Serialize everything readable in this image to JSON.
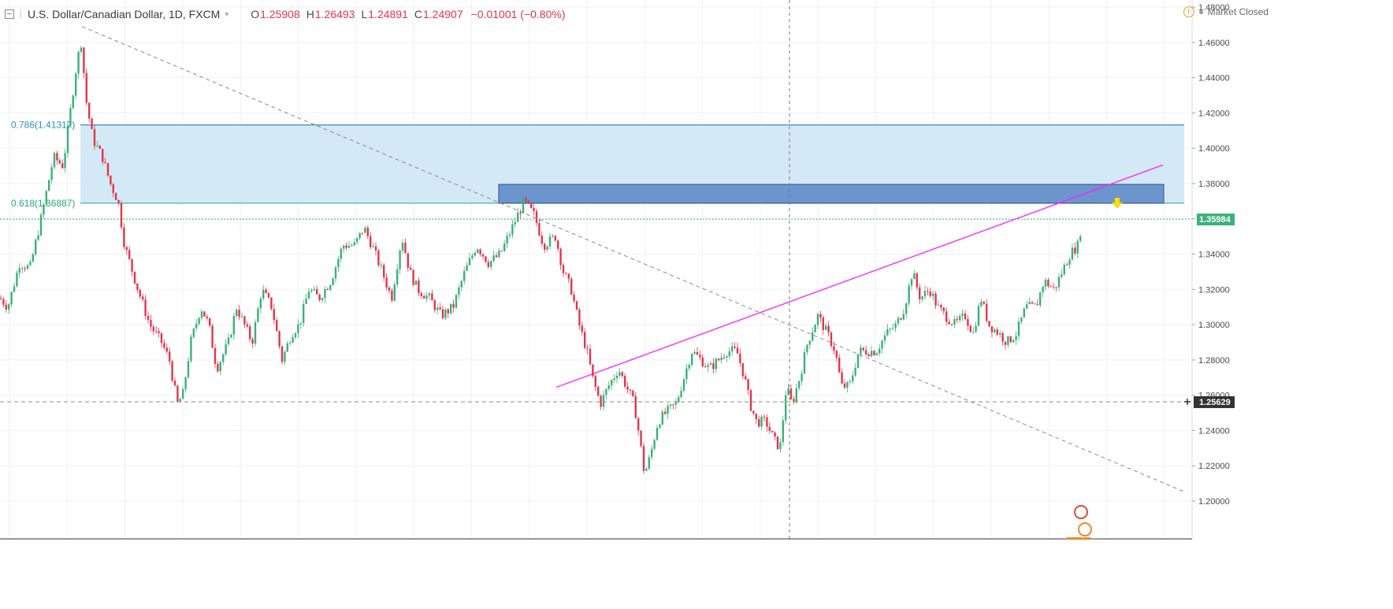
{
  "header": {
    "title": "U.S. Dollar/Canadian Dollar, 1D, FXCM",
    "o_label": "O",
    "o_value": "1.25908",
    "h_label": "H",
    "h_value": "1.26493",
    "l_label": "L",
    "l_value": "1.24891",
    "c_label": "C",
    "c_value": "1.24907",
    "change": "−0.01001 (−0.80%)"
  },
  "status": {
    "text": "Market Closed",
    "icon": "warning-icon"
  },
  "chart_data": {
    "type": "candlestick",
    "symbol": "USDCAD",
    "timeframe": "1D",
    "ylim": [
      1.192,
      1.482
    ],
    "y_ticks": [
      "1.48000",
      "1.46000",
      "1.44000",
      "1.42000",
      "1.40000",
      "1.38000",
      "1.36000",
      "1.34000",
      "1.32000",
      "1.30000",
      "1.28000",
      "1.26000",
      "1.24000",
      "1.22000",
      "1.20000"
    ],
    "grid": true,
    "colors": {
      "up": "#3bb07a",
      "down": "#e0364c",
      "fib_zone": "#d2e8f5",
      "fib_line": "#1e6fa8",
      "resistance_box": "#5b86c6",
      "trendline": "#ff1bff",
      "crosshair": "#7a7a7a"
    },
    "fib_levels": [
      {
        "label": "0.786(1.41317)",
        "price": 1.41317
      },
      {
        "label": "0.618(1.36887)",
        "price": 1.36887
      }
    ],
    "resistance_zone": {
      "top": 1.3795,
      "bottom": 1.3688
    },
    "price_lines": [
      {
        "label": "1.35984",
        "price": 1.35984,
        "style": "dotted",
        "color": "#3bb07a"
      },
      {
        "label": "1.25629",
        "price": 1.25629,
        "style": "dashed",
        "color": "#333333"
      }
    ],
    "diagonal_trendline_start_price": 1.469,
    "diagonal_trendline_end_price": 1.2055,
    "rising_trendline_start_price": 1.2645,
    "rising_trendline_end_price": 1.3905,
    "keypoints": [
      [
        0,
        1.315
      ],
      [
        10,
        1.31
      ],
      [
        25,
        1.335
      ],
      [
        38,
        1.332
      ],
      [
        52,
        1.36
      ],
      [
        68,
        1.395
      ],
      [
        80,
        1.39
      ],
      [
        98,
        1.45
      ],
      [
        103,
        1.46
      ],
      [
        110,
        1.425
      ],
      [
        118,
        1.405
      ],
      [
        130,
        1.395
      ],
      [
        140,
        1.38
      ],
      [
        150,
        1.37
      ],
      [
        158,
        1.345
      ],
      [
        175,
        1.32
      ],
      [
        190,
        1.3
      ],
      [
        205,
        1.29
      ],
      [
        215,
        1.28
      ],
      [
        225,
        1.255
      ],
      [
        232,
        1.26
      ],
      [
        242,
        1.29
      ],
      [
        255,
        1.31
      ],
      [
        265,
        1.3
      ],
      [
        275,
        1.275
      ],
      [
        290,
        1.29
      ],
      [
        300,
        1.31
      ],
      [
        310,
        1.3
      ],
      [
        320,
        1.29
      ],
      [
        332,
        1.32
      ],
      [
        345,
        1.31
      ],
      [
        358,
        1.28
      ],
      [
        370,
        1.295
      ],
      [
        380,
        1.3
      ],
      [
        392,
        1.32
      ],
      [
        405,
        1.315
      ],
      [
        420,
        1.325
      ],
      [
        435,
        1.345
      ],
      [
        450,
        1.345
      ],
      [
        462,
        1.355
      ],
      [
        472,
        1.345
      ],
      [
        485,
        1.33
      ],
      [
        497,
        1.315
      ],
      [
        510,
        1.35
      ],
      [
        520,
        1.33
      ],
      [
        530,
        1.32
      ],
      [
        545,
        1.315
      ],
      [
        560,
        1.305
      ],
      [
        575,
        1.31
      ],
      [
        590,
        1.33
      ],
      [
        605,
        1.345
      ],
      [
        620,
        1.335
      ],
      [
        635,
        1.34
      ],
      [
        650,
        1.355
      ],
      [
        665,
        1.37
      ],
      [
        678,
        1.362
      ],
      [
        690,
        1.345
      ],
      [
        705,
        1.35
      ],
      [
        715,
        1.33
      ],
      [
        725,
        1.32
      ],
      [
        735,
        1.3
      ],
      [
        745,
        1.285
      ],
      [
        752,
        1.27
      ],
      [
        762,
        1.255
      ],
      [
        772,
        1.265
      ],
      [
        785,
        1.275
      ],
      [
        795,
        1.265
      ],
      [
        805,
        1.255
      ],
      [
        812,
        1.235
      ],
      [
        818,
        1.215
      ],
      [
        825,
        1.225
      ],
      [
        835,
        1.245
      ],
      [
        845,
        1.25
      ],
      [
        858,
        1.255
      ],
      [
        868,
        1.27
      ],
      [
        878,
        1.285
      ],
      [
        890,
        1.28
      ],
      [
        900,
        1.275
      ],
      [
        912,
        1.28
      ],
      [
        922,
        1.285
      ],
      [
        935,
        1.285
      ],
      [
        945,
        1.27
      ],
      [
        952,
        1.255
      ],
      [
        960,
        1.245
      ],
      [
        972,
        1.245
      ],
      [
        982,
        1.235
      ],
      [
        990,
        1.23
      ],
      [
        998,
        1.265
      ],
      [
        1005,
        1.255
      ],
      [
        1015,
        1.27
      ],
      [
        1025,
        1.29
      ],
      [
        1038,
        1.305
      ],
      [
        1050,
        1.295
      ],
      [
        1060,
        1.285
      ],
      [
        1068,
        1.265
      ],
      [
        1078,
        1.265
      ],
      [
        1090,
        1.285
      ],
      [
        1100,
        1.285
      ],
      [
        1112,
        1.285
      ],
      [
        1125,
        1.295
      ],
      [
        1138,
        1.3
      ],
      [
        1148,
        1.31
      ],
      [
        1158,
        1.33
      ],
      [
        1168,
        1.315
      ],
      [
        1180,
        1.32
      ],
      [
        1190,
        1.31
      ],
      [
        1200,
        1.305
      ],
      [
        1212,
        1.3
      ],
      [
        1225,
        1.305
      ],
      [
        1235,
        1.295
      ],
      [
        1245,
        1.315
      ],
      [
        1255,
        1.3
      ],
      [
        1268,
        1.295
      ],
      [
        1278,
        1.29
      ],
      [
        1290,
        1.295
      ],
      [
        1302,
        1.31
      ],
      [
        1315,
        1.31
      ],
      [
        1325,
        1.325
      ],
      [
        1338,
        1.32
      ],
      [
        1348,
        1.33
      ],
      [
        1358,
        1.34
      ],
      [
        1368,
        1.345
      ],
      [
        1374,
        1.36
      ]
    ]
  }
}
